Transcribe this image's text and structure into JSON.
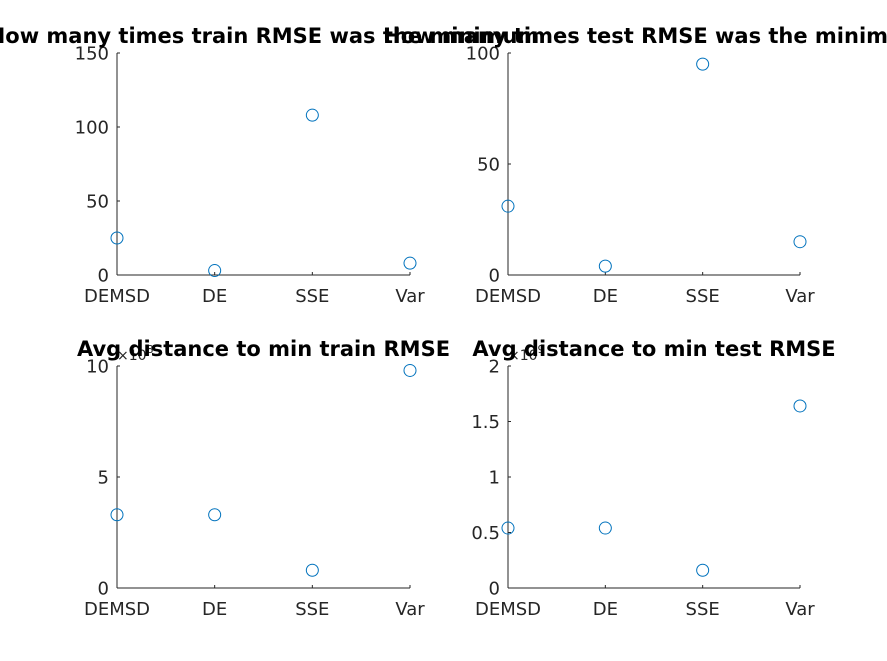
{
  "chart_data": [
    {
      "type": "scatter",
      "title": "How many times train RMSE was the minimum",
      "categories": [
        "DEMSD",
        "DE",
        "SSE",
        "Var"
      ],
      "values": [
        25,
        3,
        108,
        8
      ],
      "ylim": [
        0,
        150
      ],
      "yticks": [
        0,
        50,
        100,
        150
      ],
      "ytick_labels": [
        "0",
        "50",
        "100",
        "150"
      ],
      "exponent_label": "",
      "marker_color": "#0072BD",
      "grid": false
    },
    {
      "type": "scatter",
      "title": "How many times test RMSE was the minimum",
      "categories": [
        "DEMSD",
        "DE",
        "SSE",
        "Var"
      ],
      "values": [
        31,
        4,
        95,
        15
      ],
      "ylim": [
        0,
        100
      ],
      "yticks": [
        0,
        50,
        100
      ],
      "ytick_labels": [
        "0",
        "50",
        "100"
      ],
      "exponent_label": "",
      "marker_color": "#0072BD",
      "grid": false
    },
    {
      "type": "scatter",
      "title": "Avg distance to min train RMSE",
      "categories": [
        "DEMSD",
        "DE",
        "SSE",
        "Var"
      ],
      "values": [
        330000000,
        330000000,
        80000000,
        980000000
      ],
      "ylim": [
        0,
        1000000000
      ],
      "yticks": [
        0,
        500000000,
        1000000000
      ],
      "ytick_labels": [
        "0",
        "5",
        "10"
      ],
      "exponent_label": "×10^8",
      "marker_color": "#0072BD",
      "grid": false
    },
    {
      "type": "scatter",
      "title": "Avg distance to min test RMSE",
      "categories": [
        "DEMSD",
        "DE",
        "SSE",
        "Var"
      ],
      "values": [
        540000000,
        540000000,
        160000000,
        1640000000
      ],
      "ylim": [
        0,
        2000000000
      ],
      "yticks": [
        0,
        500000000,
        1000000000,
        1500000000,
        2000000000
      ],
      "ytick_labels": [
        "0",
        "0.5",
        "1",
        "1.5",
        "2"
      ],
      "exponent_label": "×10^9",
      "marker_color": "#0072BD",
      "grid": false
    }
  ]
}
